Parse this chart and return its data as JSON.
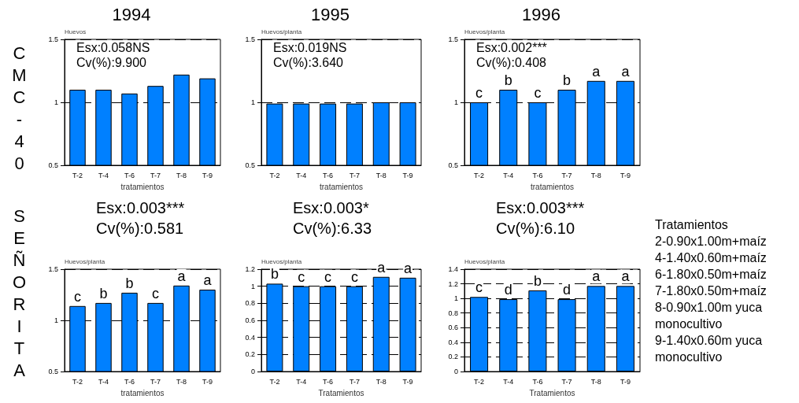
{
  "chart_data": [
    {
      "type": "bar",
      "title": "1994",
      "ylabel": "Huevos",
      "xlabel": "tratamientos",
      "categories": [
        "T-2",
        "T-4",
        "T-6",
        "T-7",
        "T-8",
        "T-9"
      ],
      "values": [
        1.1,
        1.1,
        1.07,
        1.13,
        1.22,
        1.19
      ],
      "color": "#0080ff",
      "ylim": [
        0.5,
        1.5
      ],
      "yticks": [
        0.5,
        1,
        1.5
      ],
      "grid": "y",
      "annotations": [
        "Esx:0.058NS",
        "Cv(%):9.900",
        "CMC-40"
      ]
    },
    {
      "type": "bar",
      "title": "1995",
      "ylabel": "Huevos/planta",
      "xlabel": "tratamientos",
      "categories": [
        "T-2",
        "T-4",
        "T-6",
        "T-7",
        "T-8",
        "T-9"
      ],
      "values": [
        0.99,
        0.99,
        0.99,
        0.99,
        1.0,
        1.0
      ],
      "color": "#0080ff",
      "ylim": [
        0.5,
        1.5
      ],
      "yticks": [
        0.5,
        1,
        1.5
      ],
      "grid": "y",
      "annotations": [
        "Esx:0.019NS",
        "Cv(%):3.640"
      ]
    },
    {
      "type": "bar",
      "title": "1996",
      "ylabel": "Huevos/planta",
      "xlabel": "tratamientos",
      "categories": [
        "T-2",
        "T-4",
        "T-6",
        "T-7",
        "T-8",
        "T-9"
      ],
      "values": [
        1.0,
        1.1,
        1.0,
        1.1,
        1.17,
        1.17
      ],
      "value_labels": [
        "c",
        "b",
        "c",
        "b",
        "a",
        "a"
      ],
      "color": "#0080ff",
      "ylim": [
        0.5,
        1.5
      ],
      "yticks": [
        0.5,
        1,
        1.5
      ],
      "grid": "y",
      "annotations": [
        "Esx:0.002***",
        "Cv(%):0.408"
      ]
    },
    {
      "type": "bar",
      "ylabel": "Huevos/planta",
      "xlabel": "tratamientos",
      "categories": [
        "T-2",
        "T-4",
        "T-6",
        "T-7",
        "T-8",
        "T-9"
      ],
      "values": [
        1.14,
        1.17,
        1.27,
        1.17,
        1.34,
        1.3
      ],
      "value_labels": [
        "c",
        "b",
        "b",
        "c",
        "a",
        "a"
      ],
      "color": "#0080ff",
      "ylim": [
        0.5,
        1.5
      ],
      "yticks": [
        0.5,
        1,
        1.5
      ],
      "grid": "y",
      "annotations": [
        "Esx:0.003***",
        "Cv(%):0.581",
        "SEÑORITA"
      ]
    },
    {
      "type": "bar",
      "ylabel": "Huevos/planta",
      "xlabel": "Tratamientos",
      "categories": [
        "T-2",
        "T-4",
        "T-6",
        "T-7",
        "T-8",
        "T-9"
      ],
      "values": [
        1.03,
        1.0,
        1.0,
        1.0,
        1.11,
        1.1
      ],
      "value_labels": [
        "b",
        "c",
        "c",
        "c",
        "a",
        "a"
      ],
      "color": "#0080ff",
      "ylim": [
        0,
        1.2
      ],
      "yticks": [
        0,
        0.2,
        0.4,
        0.6,
        0.8,
        1,
        1.2
      ],
      "grid": "y",
      "annotations": [
        "Esx:0.003*",
        "Cv(%):6.33"
      ]
    },
    {
      "type": "bar",
      "ylabel": "Huevos/planta",
      "xlabel": "Tratamientos",
      "categories": [
        "T-2",
        "T-4",
        "T-6",
        "T-7",
        "T-8",
        "T-9"
      ],
      "values": [
        1.02,
        0.99,
        1.11,
        0.99,
        1.17,
        1.17
      ],
      "value_labels": [
        "c",
        "d",
        "b",
        "d",
        "a",
        "a"
      ],
      "color": "#0080ff",
      "ylim": [
        0,
        1.4
      ],
      "yticks": [
        0,
        0.2,
        0.4,
        0.6,
        0.8,
        1,
        1.2,
        1.4
      ],
      "grid": "y",
      "annotations": [
        "Esx:0.003***",
        "Cv(%):6.10",
        "Tratamientos",
        "2-0.90x1.00m+maíz",
        "4-1.40x0.60m+maíz",
        "6-1.80x0.50m+maíz",
        "7-1.80x0.50m+maíz",
        "8-0.90x1.00m yuca monocultivo",
        "9-1.40x0.60m yuca monocultivo"
      ]
    }
  ]
}
